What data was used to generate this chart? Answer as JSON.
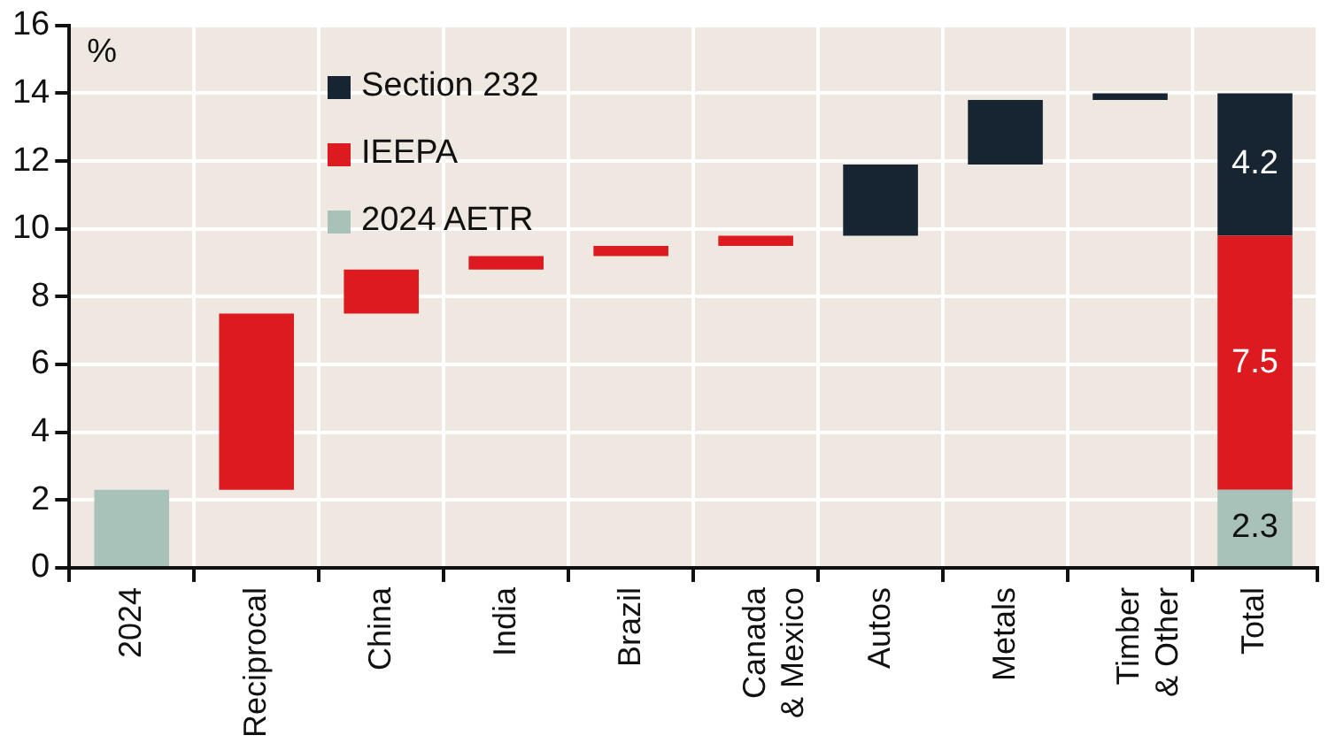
{
  "chart_data": {
    "type": "bar",
    "ylabel": "%",
    "categories": [
      "2024",
      "Reciprocal",
      "China",
      "India",
      "Brazil",
      "Canada\n& Mexico",
      "Autos",
      "Metals",
      "Timber\n& Other",
      "Total"
    ],
    "series": [
      {
        "name": "2024 AETR",
        "color": "#a8c2b9",
        "values": [
          2.3,
          null,
          null,
          null,
          null,
          null,
          null,
          null,
          null,
          2.3
        ],
        "base": [
          0,
          null,
          null,
          null,
          null,
          null,
          null,
          null,
          null,
          null
        ],
        "value_labels": [
          null,
          null,
          null,
          null,
          null,
          null,
          null,
          null,
          null,
          "2.3"
        ]
      },
      {
        "name": "IEEPA",
        "color": "#de1a21",
        "values": [
          null,
          5.2,
          1.3,
          0.4,
          0.3,
          0.3,
          null,
          null,
          null,
          7.5
        ],
        "base": [
          null,
          2.3,
          7.5,
          8.8,
          9.2,
          9.5,
          null,
          null,
          null,
          null
        ],
        "value_labels": [
          null,
          null,
          null,
          null,
          null,
          null,
          null,
          null,
          null,
          "7.5"
        ]
      },
      {
        "name": "Section 232",
        "color": "#172533",
        "values": [
          null,
          null,
          null,
          null,
          null,
          null,
          2.1,
          1.9,
          0.2,
          4.2
        ],
        "base": [
          null,
          null,
          null,
          null,
          null,
          null,
          9.8,
          11.9,
          13.8,
          null
        ],
        "value_labels": [
          null,
          null,
          null,
          null,
          null,
          null,
          null,
          null,
          null,
          "4.2"
        ]
      }
    ],
    "stacked": true,
    "ylim": [
      0,
      16
    ],
    "yticks": [
      0,
      2,
      4,
      6,
      8,
      10,
      12,
      14,
      16
    ],
    "grid": true,
    "legend": "top left"
  }
}
